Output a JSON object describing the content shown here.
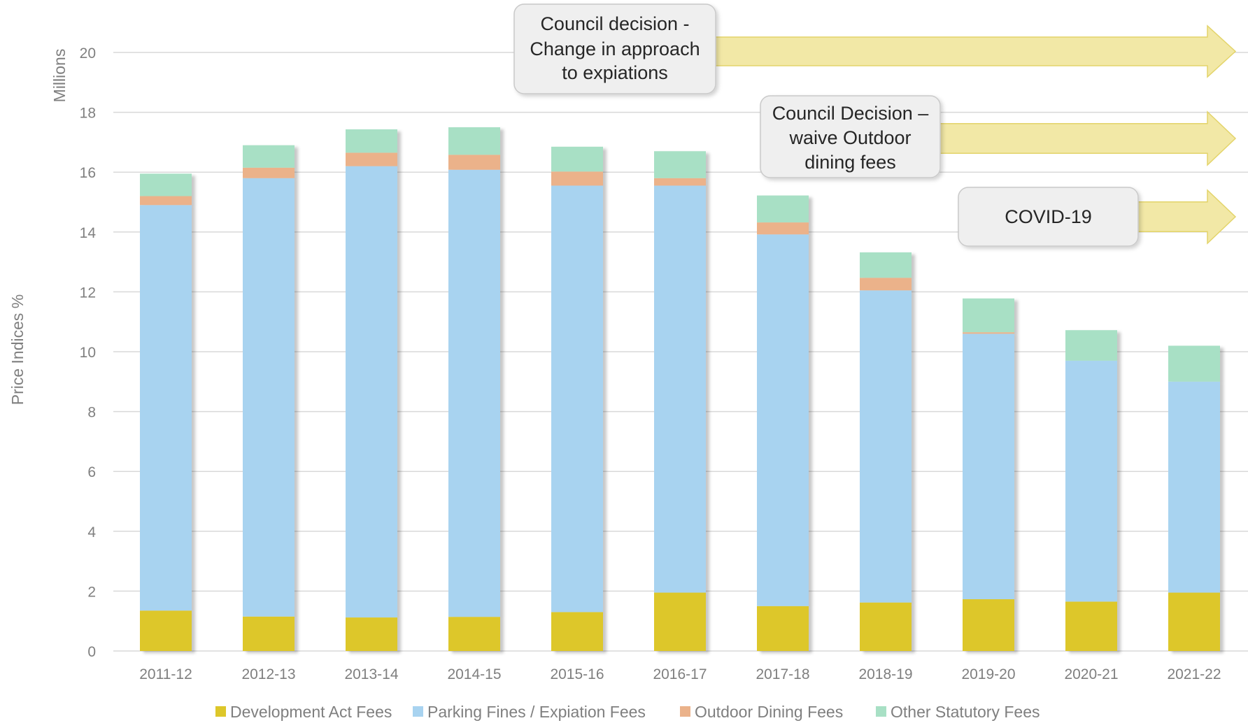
{
  "chart_data": {
    "type": "bar",
    "stacked": true,
    "categories": [
      "2011-12",
      "2012-13",
      "2013-14",
      "2014-15",
      "2015-16",
      "2016-17",
      "2017-18",
      "2018-19",
      "2019-20",
      "2020-21",
      "2021-22"
    ],
    "series": [
      {
        "name": "Development Act Fees",
        "color": "#ddc72a",
        "values": [
          1.35,
          1.15,
          1.12,
          1.14,
          1.3,
          1.95,
          1.5,
          1.62,
          1.73,
          1.65,
          1.95
        ]
      },
      {
        "name": "Parking Fines / Expiation Fees",
        "color": "#a8d3f0",
        "values": [
          13.55,
          14.65,
          15.08,
          14.94,
          14.25,
          13.6,
          12.42,
          10.43,
          8.87,
          8.05,
          7.05
        ]
      },
      {
        "name": "Outdoor Dining Fees",
        "color": "#ebb28a",
        "values": [
          0.3,
          0.35,
          0.45,
          0.5,
          0.47,
          0.25,
          0.4,
          0.42,
          0.05,
          0.0,
          0.0
        ]
      },
      {
        "name": "Other Statutory Fees",
        "color": "#a8e0c5",
        "values": [
          0.75,
          0.75,
          0.78,
          0.92,
          0.83,
          0.9,
          0.9,
          0.85,
          1.13,
          1.02,
          1.2
        ]
      }
    ],
    "ylim": [
      0,
      20
    ],
    "yticks": [
      "0",
      "2",
      "4",
      "6",
      "8",
      "10",
      "12",
      "14",
      "16",
      "18",
      "20"
    ],
    "ylabel": "Price Indices %",
    "yunit": "Millions",
    "grid": true,
    "legend_position": "bottom",
    "annotations": [
      {
        "lines": [
          "Council decision -",
          "Change in approach",
          "to expiations"
        ],
        "starts_after": "2015-16"
      },
      {
        "lines": [
          "Council Decision –",
          "waive Outdoor",
          "dining fees"
        ],
        "starts_after": "2017-18"
      },
      {
        "lines": [
          "COVID-19"
        ],
        "starts_after": "2019-20"
      }
    ]
  }
}
